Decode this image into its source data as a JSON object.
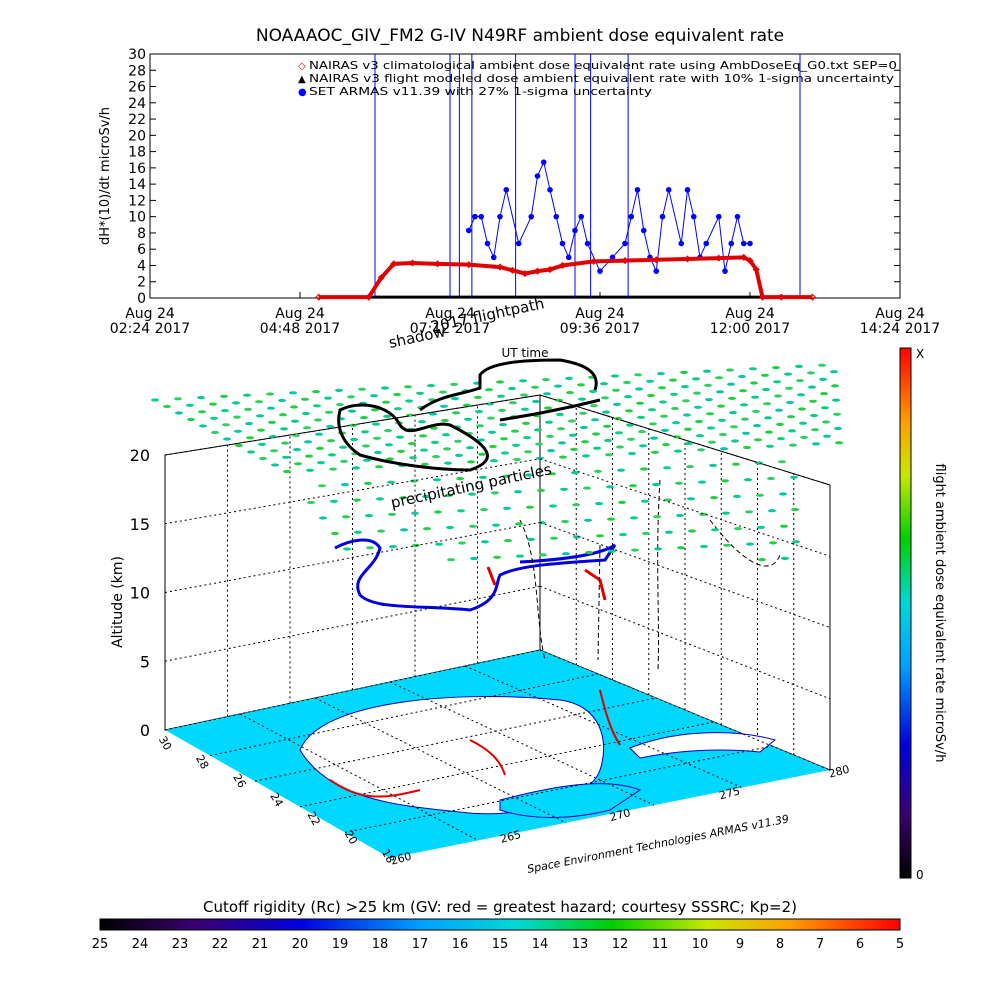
{
  "chart_data": [
    {
      "type": "line",
      "title": "NOAAAOC_GIV_FM2 G-IV   N49RF  ambient dose equivalent rate",
      "ylabel": "dH*(10)/dt microSv/h",
      "xlabel": "UT time",
      "ylim": [
        0,
        30
      ],
      "yticks": [
        "0",
        "2",
        "4",
        "6",
        "8",
        "10",
        "12",
        "14",
        "16",
        "18",
        "20",
        "22",
        "24",
        "26",
        "28",
        "30"
      ],
      "xticks": [
        {
          "date": "Aug 24",
          "time": "02:24 2017"
        },
        {
          "date": "Aug 24",
          "time": "04:48 2017"
        },
        {
          "date": "Aug 24",
          "time": "07:12 2017"
        },
        {
          "date": "Aug 24",
          "time": "09:36 2017"
        },
        {
          "date": "Aug 24",
          "time": "12:00 2017"
        },
        {
          "date": "Aug 24",
          "time": "14:24 2017"
        }
      ],
      "xlim_hours": [
        2.4,
        14.4
      ],
      "legend": [
        {
          "symbol": "◇",
          "color": "#e00000",
          "text": "NAIRAS v3 climatological ambient dose equivalent rate using AmbDoseEq_G0.txt SEP=0"
        },
        {
          "symbol": "▲",
          "color": "#000000",
          "text": "NAIRAS v3 flight modeled dose ambient equivalent rate with 10% 1-sigma uncertainty"
        },
        {
          "symbol": "●",
          "color": "#0000ff",
          "text": "SET ARMAS v11.39 with 27% 1-sigma uncertainty"
        }
      ],
      "series": [
        {
          "name": "NAIRAS v3 climatological ambient dose equivalent rate using AmbDoseEq_G0.txt SEP=0",
          "color": "#e00000",
          "x": [
            5.1,
            5.9,
            6.1,
            6.3,
            6.6,
            7.0,
            7.5,
            8.0,
            8.2,
            8.4,
            8.6,
            8.8,
            9.0,
            9.5,
            10.0,
            10.5,
            11.0,
            11.5,
            11.9,
            12.0,
            12.1,
            12.2,
            12.5,
            13.0
          ],
          "values": [
            0.1,
            0.1,
            2.5,
            4.2,
            4.3,
            4.2,
            4.1,
            3.8,
            3.4,
            3.0,
            3.3,
            3.5,
            4.0,
            4.5,
            4.6,
            4.7,
            4.8,
            4.9,
            5.0,
            4.6,
            3.5,
            0.1,
            0.1,
            0.1
          ]
        },
        {
          "name": "NAIRAS v3 flight modeled dose ambient equivalent rate with 10% 1-sigma uncertainty",
          "color": "#000000",
          "x": [
            5.1,
            6.0,
            7.0,
            8.0,
            9.0,
            10.0,
            11.0,
            12.0,
            12.5,
            13.0
          ],
          "values": [
            0.1,
            0.1,
            0.1,
            0.1,
            0.1,
            0.1,
            0.1,
            0.1,
            0.1,
            0.1
          ]
        },
        {
          "name": "SET ARMAS v11.39 with 27% 1-sigma uncertainty",
          "color": "#0000ff",
          "x": [
            7.5,
            7.6,
            7.7,
            7.8,
            7.9,
            8.0,
            8.1,
            8.3,
            8.5,
            8.6,
            8.7,
            8.8,
            8.9,
            9.0,
            9.1,
            9.2,
            9.3,
            9.4,
            9.6,
            9.8,
            10.0,
            10.1,
            10.2,
            10.3,
            10.4,
            10.5,
            10.6,
            10.7,
            10.9,
            11.0,
            11.1,
            11.2,
            11.3,
            11.5,
            11.6,
            11.7,
            11.8,
            11.9,
            12.0
          ],
          "values": [
            8.3,
            10.0,
            10.0,
            6.7,
            5.0,
            10.0,
            13.3,
            6.7,
            10.0,
            15.0,
            16.7,
            13.3,
            10.0,
            6.7,
            5.0,
            8.3,
            10.0,
            6.7,
            3.3,
            5.0,
            6.7,
            10.0,
            13.3,
            8.3,
            5.0,
            3.3,
            10.0,
            13.3,
            6.7,
            13.3,
            10.0,
            5.0,
            6.7,
            10.0,
            3.3,
            6.7,
            10.0,
            6.7,
            6.7
          ]
        }
      ]
    },
    {
      "type": "other",
      "description_labels": {
        "shadow": "shadow",
        "flightpath": "2017 flightpath",
        "particles": "precipitating particles",
        "zlabel": "Altitude (km)",
        "credit": "Space Environment Technologies ARMAS v11.39"
      },
      "zticks": [
        "0",
        "5",
        "10",
        "15",
        "20"
      ],
      "lat_ticks": [
        "30",
        "28",
        "26",
        "24",
        "22",
        "20",
        "18"
      ],
      "lon_ticks": [
        "260",
        "265",
        "270",
        "275",
        "280"
      ]
    },
    {
      "type": "colorbar",
      "ylabel": "flight ambient dose equivalent rate microSv/h",
      "top_label": "X",
      "bottom_label": "0"
    },
    {
      "type": "colorbar",
      "title": "Cutoff rigidity (Rc) >25 km (GV: red = greatest hazard; courtesy SSSRC; Kp=2)",
      "ticks": [
        "25",
        "24",
        "23",
        "22",
        "21",
        "20",
        "19",
        "18",
        "17",
        "16",
        "15",
        "14",
        "13",
        "12",
        "11",
        "10",
        "9",
        "8",
        "7",
        "6",
        "5"
      ]
    }
  ]
}
